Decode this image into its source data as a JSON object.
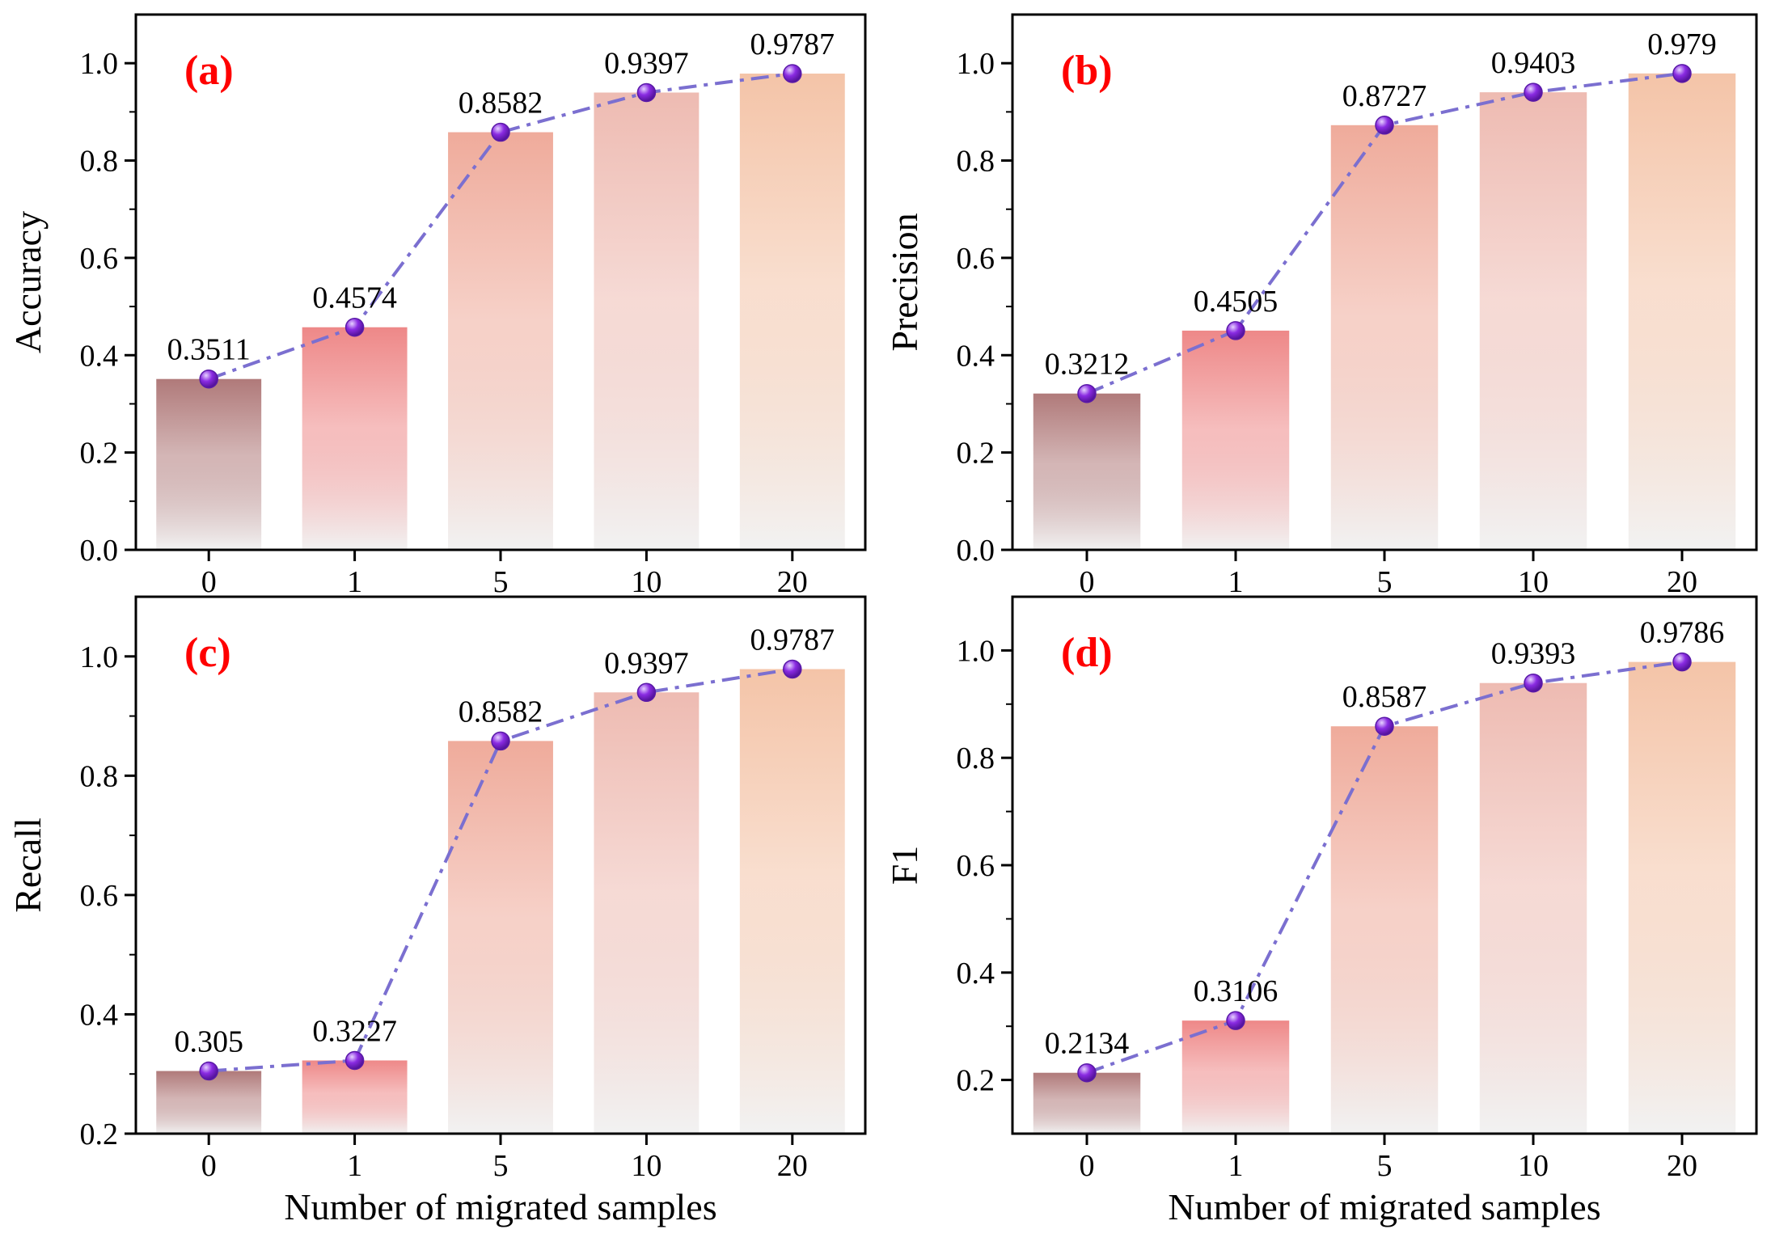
{
  "figure": {
    "xlabel": "Number of migrated samples"
  },
  "colors": {
    "line": "#7b6fd0",
    "marker": "#8a2be2",
    "marker_highlight": "#e6d2ff",
    "panel_label": "#ff0000",
    "bar_fade": "#f2f2f2",
    "bar_top": [
      "#b07a7a",
      "#ee8888",
      "#efab9b",
      "#eebbb2",
      "#f4c4a8"
    ]
  },
  "chart_data": [
    {
      "type": "bar",
      "panel_label": "(a)",
      "ylabel": "Accuracy",
      "xlabel": "",
      "categories": [
        "0",
        "1",
        "5",
        "10",
        "20"
      ],
      "values": [
        0.3511,
        0.4574,
        0.8582,
        0.9397,
        0.9787
      ],
      "value_labels": [
        "0.3511",
        "0.4574",
        "0.8582",
        "0.9397",
        "0.9787"
      ],
      "ylim": [
        0,
        1.1
      ],
      "yticks": [
        0.0,
        0.2,
        0.4,
        0.6,
        0.8,
        1.0
      ],
      "ytick_labels": [
        "0.0",
        "0.2",
        "0.4",
        "0.6",
        "0.8",
        "1.0"
      ],
      "overlay": "line-with-markers"
    },
    {
      "type": "bar",
      "panel_label": "(b)",
      "ylabel": "Precision",
      "xlabel": "",
      "categories": [
        "0",
        "1",
        "5",
        "10",
        "20"
      ],
      "values": [
        0.3212,
        0.4505,
        0.8727,
        0.9403,
        0.979
      ],
      "value_labels": [
        "0.3212",
        "0.4505",
        "0.8727",
        "0.9403",
        "0.979"
      ],
      "ylim": [
        0,
        1.1
      ],
      "yticks": [
        0.0,
        0.2,
        0.4,
        0.6,
        0.8,
        1.0
      ],
      "ytick_labels": [
        "0.0",
        "0.2",
        "0.4",
        "0.6",
        "0.8",
        "1.0"
      ],
      "overlay": "line-with-markers"
    },
    {
      "type": "bar",
      "panel_label": "(c)",
      "ylabel": "Recall",
      "xlabel": "Number of migrated samples",
      "categories": [
        "0",
        "1",
        "5",
        "10",
        "20"
      ],
      "values": [
        0.305,
        0.3227,
        0.8582,
        0.9397,
        0.9787
      ],
      "value_labels": [
        "0.305",
        "0.3227",
        "0.8582",
        "0.9397",
        "0.9787"
      ],
      "ylim": [
        0.2,
        1.1
      ],
      "yticks": [
        0.2,
        0.4,
        0.6,
        0.8,
        1.0
      ],
      "ytick_labels": [
        "0.2",
        "0.4",
        "0.6",
        "0.8",
        "1.0"
      ],
      "overlay": "line-with-markers"
    },
    {
      "type": "bar",
      "panel_label": "(d)",
      "ylabel": "F1",
      "xlabel": "Number of migrated samples",
      "categories": [
        "0",
        "1",
        "5",
        "10",
        "20"
      ],
      "values": [
        0.2134,
        0.3106,
        0.8587,
        0.9393,
        0.9786
      ],
      "value_labels": [
        "0.2134",
        "0.3106",
        "0.8587",
        "0.9393",
        "0.9786"
      ],
      "ylim": [
        0.1,
        1.1
      ],
      "yticks": [
        0.2,
        0.4,
        0.6,
        0.8,
        1.0
      ],
      "ytick_labels": [
        "0.2",
        "0.4",
        "0.6",
        "0.8",
        "1.0"
      ],
      "overlay": "line-with-markers"
    }
  ]
}
